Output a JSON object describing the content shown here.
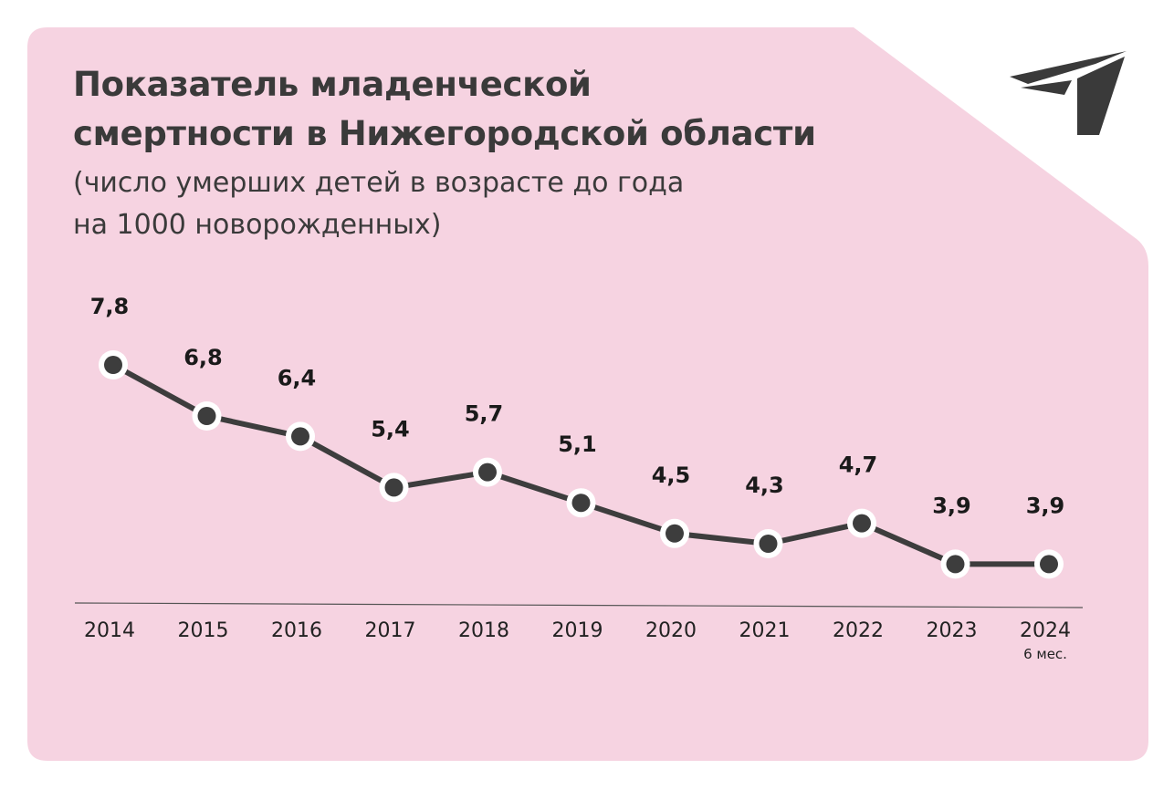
{
  "header": {
    "title_line1": "Показатель младенческой",
    "title_line2": "смертности в Нижегородской области",
    "subtitle_line1": "(число умерших детей в возрасте до года",
    "subtitle_line2": "на 1000 новорожденных)"
  },
  "logo": {
    "icon": "paper-plane-t-icon"
  },
  "colors": {
    "card": "#f6d3e1",
    "line": "#3d3d3d",
    "marker_fill": "#3d3d3d",
    "marker_ring": "#ffffff",
    "text": "#3a3a3a"
  },
  "chart_data": {
    "type": "line",
    "title": "Показатель младенческой смертности в Нижегородской области",
    "subtitle": "(число умерших детей в возрасте до года на 1000 новорожденных)",
    "categories": [
      "2014",
      "2015",
      "2016",
      "2017",
      "2018",
      "2019",
      "2020",
      "2021",
      "2022",
      "2023",
      "2024"
    ],
    "category_notes": [
      "",
      "",
      "",
      "",
      "",
      "",
      "",
      "",
      "",
      "",
      "6 мес."
    ],
    "values": [
      7.8,
      6.8,
      6.4,
      5.4,
      5.7,
      5.1,
      4.5,
      4.3,
      4.7,
      3.9,
      3.9
    ],
    "value_labels": [
      "7,8",
      "6,8",
      "6,4",
      "5,4",
      "5,7",
      "5,1",
      "4,5",
      "4,3",
      "4,7",
      "3,9",
      "3,9"
    ],
    "data_labels": true,
    "grid": false,
    "legend": "none",
    "xlabel": "",
    "ylabel": ""
  }
}
